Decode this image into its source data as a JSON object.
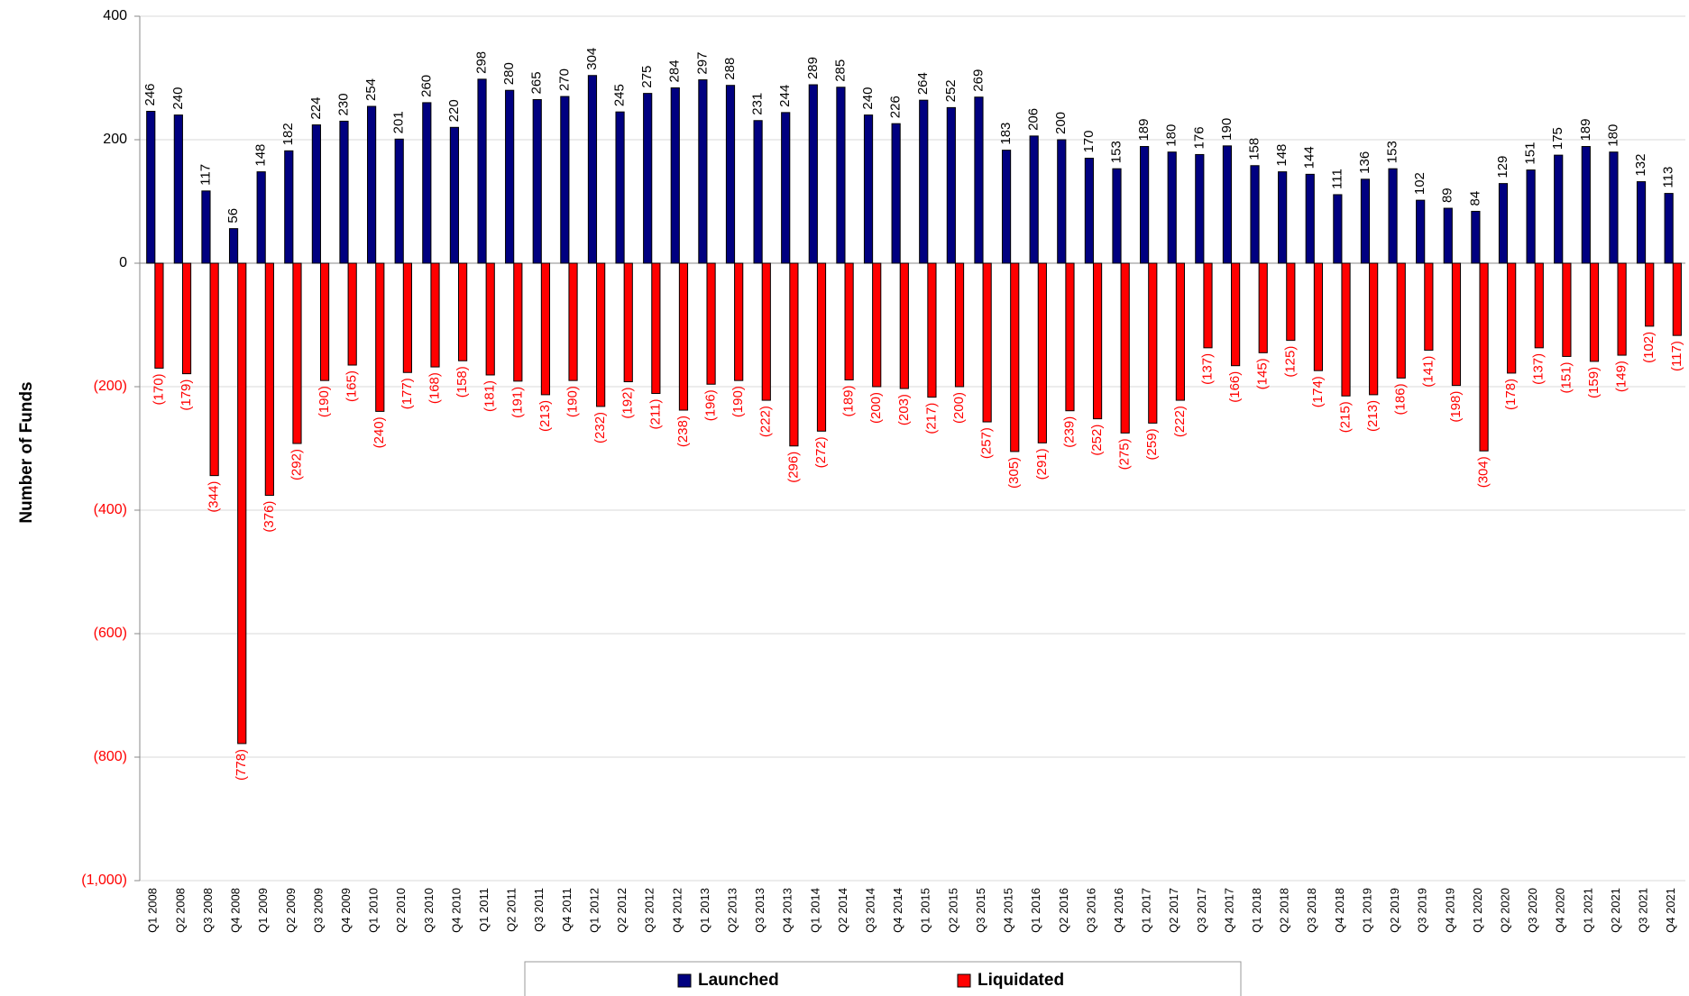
{
  "chart_data": {
    "type": "bar",
    "y_label": "Number of Funds",
    "categories": [
      "Q1 2008",
      "Q2 2008",
      "Q3 2008",
      "Q4 2008",
      "Q1 2009",
      "Q2 2009",
      "Q3 2009",
      "Q4 2009",
      "Q1 2010",
      "Q2 2010",
      "Q3 2010",
      "Q4 2010",
      "Q1 2011",
      "Q2 2011",
      "Q3 2011",
      "Q4 2011",
      "Q1 2012",
      "Q2 2012",
      "Q3 2012",
      "Q4 2012",
      "Q1 2013",
      "Q2 2013",
      "Q3 2013",
      "Q4 2013",
      "Q1 2014",
      "Q2 2014",
      "Q3 2014",
      "Q4 2014",
      "Q1 2015",
      "Q2 2015",
      "Q3 2015",
      "Q4 2015",
      "Q1 2016",
      "Q2 2016",
      "Q3 2016",
      "Q4 2016",
      "Q1 2017",
      "Q2 2017",
      "Q3 2017",
      "Q4 2017",
      "Q1 2018",
      "Q2 2018",
      "Q3 2018",
      "Q4 2018",
      "Q1 2019",
      "Q2 2019",
      "Q3 2019",
      "Q4 2019",
      "Q1 2020",
      "Q2 2020",
      "Q3 2020",
      "Q4 2020",
      "Q1 2021",
      "Q2 2021",
      "Q3 2021",
      "Q4 2021"
    ],
    "series": [
      {
        "name": "Launched",
        "color": "#000080",
        "label_color": "#000000",
        "values": [
          246,
          240,
          117,
          56,
          148,
          182,
          224,
          230,
          254,
          201,
          260,
          220,
          298,
          280,
          265,
          270,
          304,
          245,
          275,
          284,
          297,
          288,
          231,
          244,
          289,
          285,
          240,
          226,
          264,
          252,
          269,
          183,
          206,
          200,
          170,
          153,
          189,
          180,
          176,
          190,
          158,
          148,
          144,
          111,
          136,
          153,
          102,
          89,
          84,
          129,
          151,
          175,
          189,
          180,
          132,
          113
        ]
      },
      {
        "name": "Liquidated",
        "color": "#ff0000",
        "label_color": "#ff0000",
        "values": [
          -170,
          -179,
          -344,
          -778,
          -376,
          -292,
          -190,
          -165,
          -240,
          -177,
          -168,
          -158,
          -181,
          -191,
          -213,
          -190,
          -232,
          -192,
          -211,
          -238,
          -196,
          -190,
          -222,
          -296,
          -272,
          -189,
          -200,
          -203,
          -217,
          -200,
          -257,
          -305,
          -291,
          -239,
          -252,
          -275,
          -259,
          -222,
          -137,
          -166,
          -145,
          -125,
          -174,
          -215,
          -213,
          -186,
          -141,
          -198,
          -304,
          -178,
          -137,
          -151,
          -159,
          -149,
          -102,
          -117
        ],
        "value_labels": [
          "(170)",
          "(179)",
          "(344)",
          "(778)",
          "(376)",
          "(292)",
          "(190)",
          "(165)",
          "(240)",
          "(177)",
          "(168)",
          "(158)",
          "(181)",
          "(191)",
          "(213)",
          "(190)",
          "(232)",
          "(192)",
          "(211)",
          "(238)",
          "(196)",
          "(190)",
          "(222)",
          "(296)",
          "(272)",
          "(189)",
          "(200)",
          "(203)",
          "(217)",
          "(200)",
          "(257)",
          "(305)",
          "(291)",
          "(239)",
          "(252)",
          "(275)",
          "(259)",
          "(222)",
          "(137)",
          "(166)",
          "(145)",
          "(125)",
          "(174)",
          "(215)",
          "(213)",
          "(186)",
          "(141)",
          "(198)",
          "(304)",
          "(178)",
          "(137)",
          "(151)",
          "(159)",
          "(149)",
          "(102)",
          "(117)"
        ]
      }
    ],
    "ylim": [
      -1000,
      400
    ],
    "yticks": [
      400,
      200,
      0,
      {
        "value": -200,
        "label": "(200)"
      },
      {
        "value": -400,
        "label": "(400)"
      },
      {
        "value": -600,
        "label": "(600)"
      },
      {
        "value": -800,
        "label": "(800)"
      },
      {
        "value": -1000,
        "label": "(1,000)"
      }
    ],
    "grid": true,
    "legend": "bottom"
  }
}
